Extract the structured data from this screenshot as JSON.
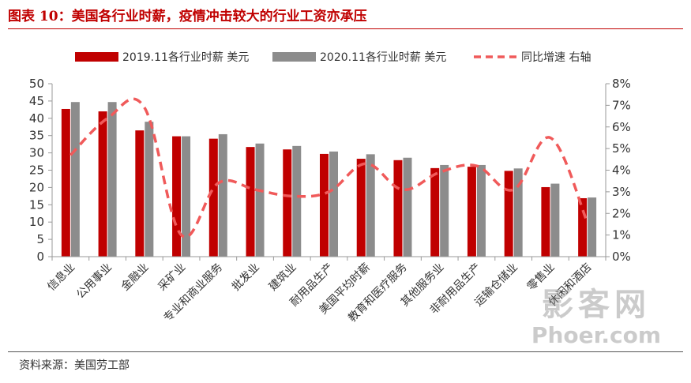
{
  "header": {
    "title": "图表 10：美国各行业时薪，疫情冲击较大的行业工资亦承压"
  },
  "footer": {
    "source": "资料来源：美国劳工部"
  },
  "watermark": {
    "cn": "影客网",
    "en": "Phoer.com"
  },
  "chart_data": {
    "type": "bar",
    "categories": [
      "信息业",
      "公用事业",
      "金融业",
      "采矿业",
      "专业和商业服务",
      "批发业",
      "建筑业",
      "耐用品生产",
      "美国平均时薪",
      "教育和医疗服务",
      "其他服务业",
      "非耐用品生产",
      "运输仓储业",
      "零售业",
      "休闲和酒店"
    ],
    "series": [
      {
        "name": "2019.11各行业时薪 美元",
        "type": "bar",
        "axis": "left",
        "color": "#c00000",
        "values": [
          42.7,
          42.0,
          36.5,
          34.8,
          34.1,
          31.7,
          31.0,
          29.7,
          28.3,
          27.9,
          25.6,
          26.0,
          24.8,
          20.1,
          16.9
        ]
      },
      {
        "name": "2020.11各行业时薪 美元",
        "type": "bar",
        "axis": "left",
        "color": "#8c8c8c",
        "values": [
          44.7,
          44.7,
          39.0,
          34.8,
          35.4,
          32.7,
          32.0,
          30.4,
          29.6,
          28.6,
          26.5,
          26.5,
          25.5,
          21.1,
          17.1
        ]
      },
      {
        "name": "同比增速 右轴",
        "type": "line",
        "axis": "right",
        "color": "#f05a5a",
        "dash": true,
        "values": [
          0.047,
          0.064,
          0.069,
          0.01,
          0.034,
          0.031,
          0.028,
          0.03,
          0.043,
          0.031,
          0.039,
          0.042,
          0.031,
          0.055,
          0.016
        ]
      }
    ],
    "y_left": {
      "min": 0,
      "max": 50,
      "ticks": [
        0,
        5,
        10,
        15,
        20,
        25,
        30,
        35,
        40,
        45,
        50
      ]
    },
    "y_right": {
      "min": 0,
      "max": 0.08,
      "ticks": [
        "0%",
        "1%",
        "2%",
        "3%",
        "4%",
        "5%",
        "6%",
        "7%",
        "8%"
      ]
    },
    "legend_position": "top",
    "grid": false
  }
}
